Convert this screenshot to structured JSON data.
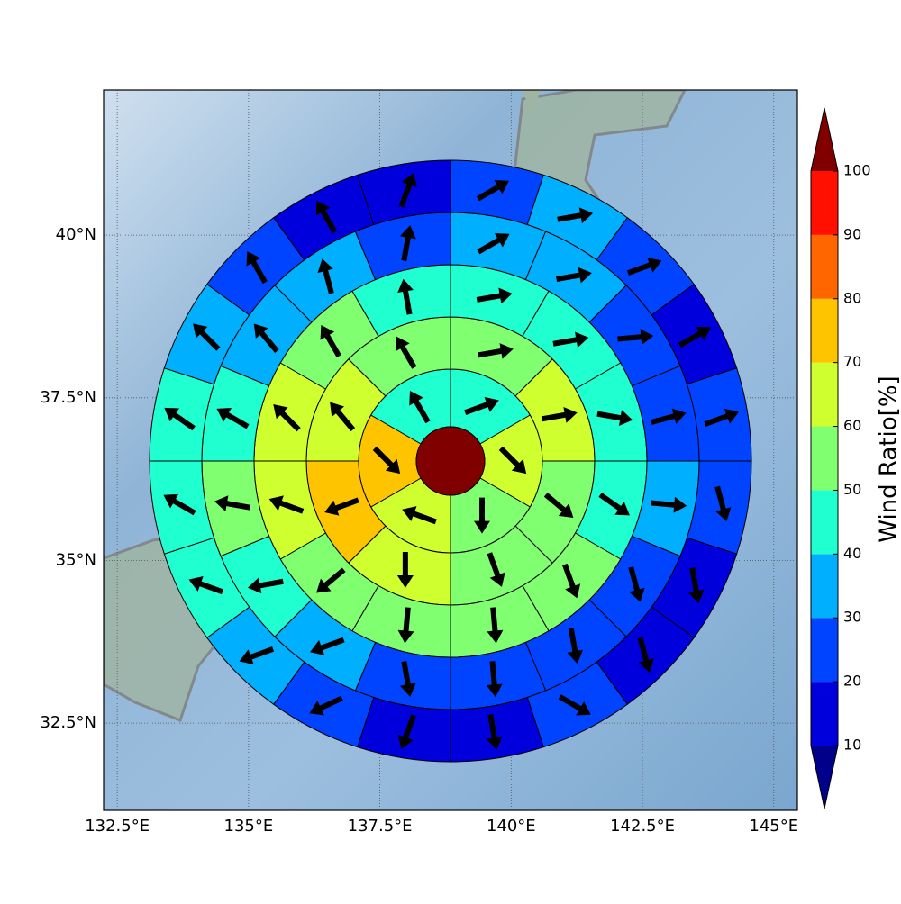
{
  "chart_data": {
    "type": "polar_map",
    "xlim": [
      132.24,
      145.45
    ],
    "ylim": [
      31.16,
      42.23
    ],
    "xticks": [
      {
        "value": 132.5,
        "label": "132.5°E"
      },
      {
        "value": 135,
        "label": "135°E"
      },
      {
        "value": 137.5,
        "label": "137.5°E"
      },
      {
        "value": 140,
        "label": "140°E"
      },
      {
        "value": 142.5,
        "label": "142.5°E"
      },
      {
        "value": 145,
        "label": "145°E"
      }
    ],
    "yticks": [
      {
        "value": 32.5,
        "label": "32.5°N"
      },
      {
        "value": 35,
        "label": "35°N"
      },
      {
        "value": 37.5,
        "label": "37.5°N"
      },
      {
        "value": 40,
        "label": "40°N"
      }
    ],
    "grid": true,
    "center_value": 105,
    "rings": [
      {
        "values": [
          45,
          65,
          55,
          65,
          75,
          45
        ],
        "directions": [
          70,
          135,
          180,
          290,
          135,
          330
        ]
      },
      {
        "values": [
          55,
          65,
          55,
          55,
          62,
          75,
          65,
          55
        ],
        "directions": [
          80,
          80,
          130,
          160,
          180,
          250,
          320,
          330
        ]
      },
      {
        "values": [
          45,
          45,
          45,
          45,
          55,
          55,
          55,
          55,
          65,
          65,
          55,
          45
        ],
        "directions": [
          80,
          80,
          100,
          125,
          160,
          175,
          185,
          230,
          290,
          315,
          330,
          350
        ]
      },
      {
        "values": [
          35,
          35,
          25,
          25,
          35,
          25,
          25,
          25,
          25,
          35,
          45,
          55,
          45,
          35,
          35,
          25
        ],
        "directions": [
          60,
          80,
          85,
          75,
          95,
          165,
          170,
          175,
          170,
          250,
          260,
          280,
          300,
          320,
          345,
          10
        ]
      },
      {
        "values": [
          25,
          35,
          25,
          15,
          25,
          25,
          15,
          15,
          25,
          15,
          15,
          25,
          35,
          45,
          45,
          45,
          35,
          25,
          15,
          15
        ],
        "directions": [
          60,
          80,
          70,
          60,
          70,
          165,
          170,
          165,
          120,
          170,
          200,
          245,
          250,
          290,
          300,
          305,
          315,
          330,
          330,
          20
        ]
      }
    ],
    "colorbar": {
      "label": "Wind Ratio[%]",
      "ticks": [
        10,
        20,
        30,
        40,
        50,
        60,
        70,
        80,
        90,
        100
      ],
      "colors": [
        "#00008b",
        "#0000dd",
        "#0044ff",
        "#00b0ff",
        "#20ffd0",
        "#80ff70",
        "#d0ff30",
        "#ffc400",
        "#ff6600",
        "#ff1000",
        "#800000"
      ]
    }
  }
}
